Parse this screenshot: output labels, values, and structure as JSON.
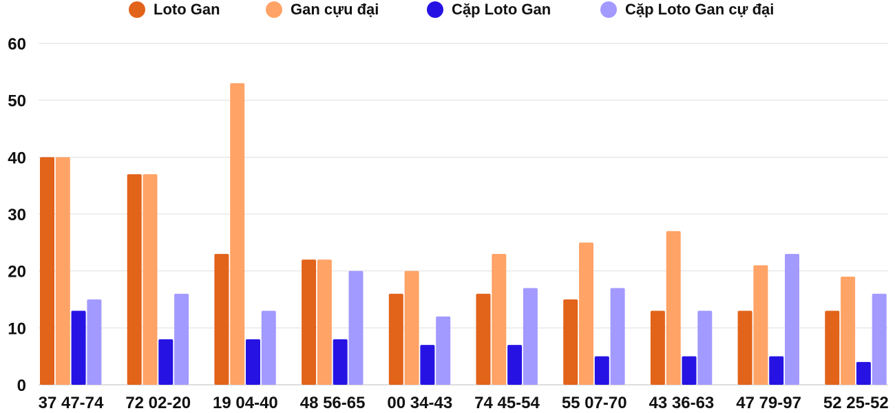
{
  "chart_data": {
    "type": "bar",
    "categories": [
      "37 47-74",
      "72 02-20",
      "19 04-40",
      "48 56-65",
      "00 34-43",
      "74 45-54",
      "55 07-70",
      "43 36-63",
      "47 79-97",
      "52 25-52"
    ],
    "series": [
      {
        "name": "Loto Gan",
        "color": "#e2631a",
        "values": [
          40,
          37,
          23,
          22,
          16,
          16,
          15,
          13,
          13,
          13
        ]
      },
      {
        "name": "Gan cựu đại",
        "color": "#ffa366",
        "values": [
          40,
          37,
          53,
          22,
          20,
          23,
          25,
          27,
          21,
          19
        ]
      },
      {
        "name": "Cặp Loto Gan",
        "color": "#2613e3",
        "values": [
          13,
          8,
          8,
          8,
          7,
          7,
          5,
          5,
          5,
          4
        ]
      },
      {
        "name": "Cặp Loto Gan cự đại",
        "color": "#a29aff",
        "values": [
          15,
          16,
          13,
          20,
          12,
          17,
          17,
          13,
          23,
          16
        ]
      }
    ],
    "yticks": [
      "0",
      "10",
      "20",
      "30",
      "40",
      "50",
      "60"
    ],
    "ylim": [
      0,
      60
    ],
    "grid": true,
    "legend": "top"
  }
}
